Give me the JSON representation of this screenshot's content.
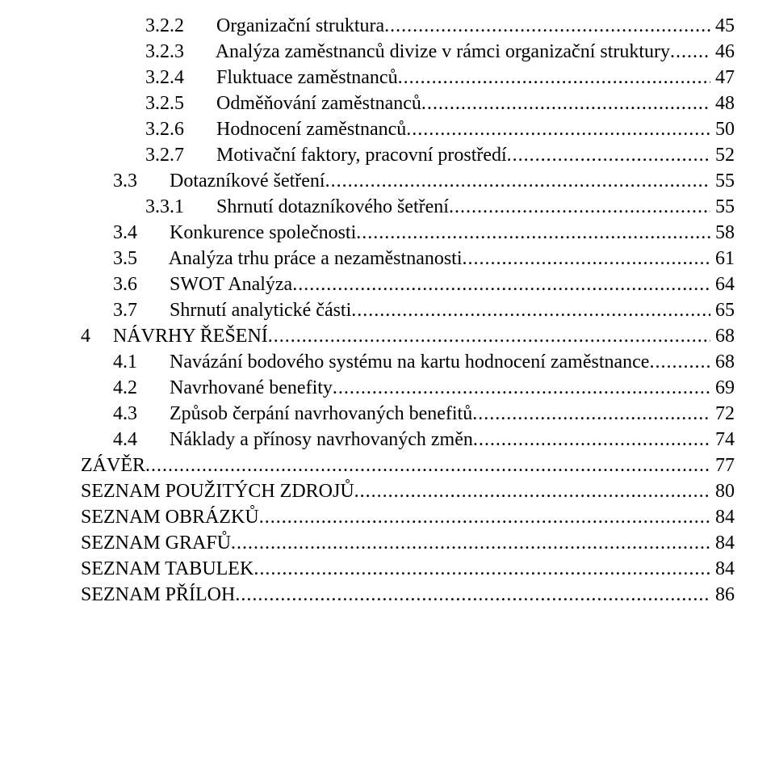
{
  "toc": [
    {
      "level": 2,
      "num": "3.2.2",
      "title": "Organizační struktura",
      "page": "45"
    },
    {
      "level": 2,
      "num": "3.2.3",
      "title": "Analýza zaměstnanců divize v rámci organizační struktury",
      "page": "46"
    },
    {
      "level": 2,
      "num": "3.2.4",
      "title": "Fluktuace zaměstnanců",
      "page": "47"
    },
    {
      "level": 2,
      "num": "3.2.5",
      "title": "Odměňování zaměstnanců",
      "page": "48"
    },
    {
      "level": 2,
      "num": "3.2.6",
      "title": "Hodnocení zaměstnanců",
      "page": "50"
    },
    {
      "level": 2,
      "num": "3.2.7",
      "title": "Motivační faktory, pracovní prostředí",
      "page": "52"
    },
    {
      "level": 1,
      "num": "3.3",
      "title": "Dotazníkové šetření",
      "page": "55"
    },
    {
      "level": 2,
      "num": "3.3.1",
      "title": "Shrnutí dotazníkového šetření",
      "page": "55"
    },
    {
      "level": 1,
      "num": "3.4",
      "title": "Konkurence společnosti",
      "page": "58"
    },
    {
      "level": 1,
      "num": "3.5",
      "title": "Analýza trhu práce a nezaměstnanosti",
      "page": "61"
    },
    {
      "level": 1,
      "num": "3.6",
      "title": "SWOT Analýza",
      "page": "64"
    },
    {
      "level": 1,
      "num": "3.7",
      "title": "Shrnutí analytické části",
      "page": "65"
    },
    {
      "level": 0,
      "num": "4",
      "title": "NÁVRHY ŘEŠENÍ",
      "page": "68"
    },
    {
      "level": 1,
      "num": "4.1",
      "title": "Navázání bodového systému na kartu hodnocení zaměstnance",
      "page": "68"
    },
    {
      "level": 1,
      "num": "4.2",
      "title": "Navrhované benefity",
      "page": "69"
    },
    {
      "level": 1,
      "num": "4.3",
      "title": "Způsob čerpání navrhovaných benefitů",
      "page": "72"
    },
    {
      "level": 1,
      "num": "4.4",
      "title": "Náklady a přínosy navrhovaných změn",
      "page": "74"
    },
    {
      "level": 0,
      "num": "",
      "title": "ZÁVĚR",
      "page": "77"
    },
    {
      "level": 0,
      "num": "",
      "title": "SEZNAM POUŽITÝCH ZDROJŮ",
      "page": "80"
    },
    {
      "level": 0,
      "num": "",
      "title": "SEZNAM OBRÁZKŮ",
      "page": "84"
    },
    {
      "level": 0,
      "num": "",
      "title": "SEZNAM GRAFŮ",
      "page": "84"
    },
    {
      "level": 0,
      "num": "",
      "title": "SEZNAM TABULEK",
      "page": "84"
    },
    {
      "level": 0,
      "num": "",
      "title": "SEZNAM PŘÍLOH",
      "page": "86"
    }
  ]
}
